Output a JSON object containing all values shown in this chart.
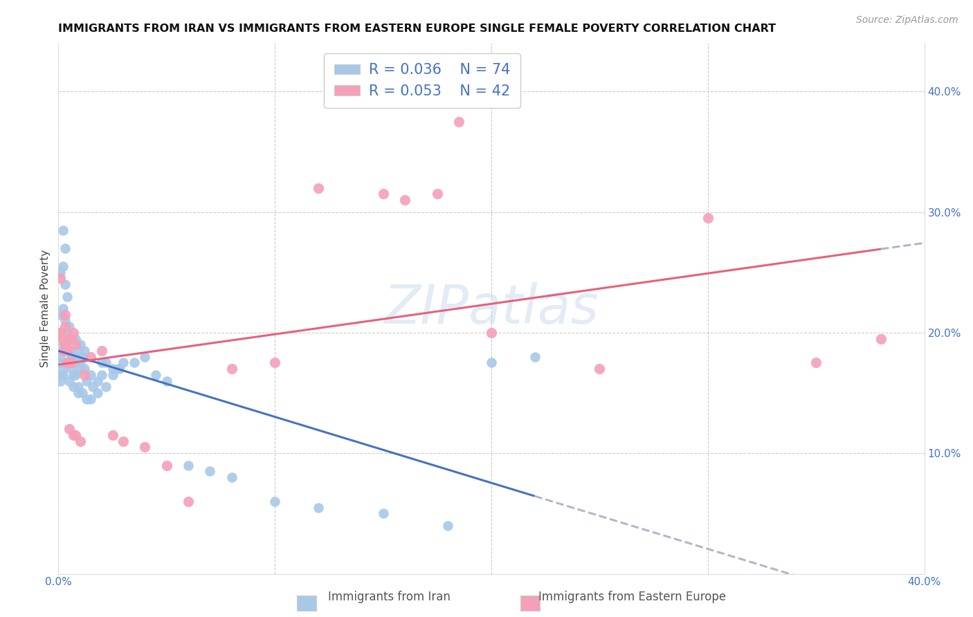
{
  "title": "IMMIGRANTS FROM IRAN VS IMMIGRANTS FROM EASTERN EUROPE SINGLE FEMALE POVERTY CORRELATION CHART",
  "source": "Source: ZipAtlas.com",
  "xlabel_iran": "Immigrants from Iran",
  "xlabel_ee": "Immigrants from Eastern Europe",
  "ylabel": "Single Female Poverty",
  "iran_R": 0.036,
  "iran_N": 74,
  "ee_R": 0.053,
  "ee_N": 42,
  "xlim": [
    0.0,
    0.4
  ],
  "ylim": [
    0.0,
    0.44
  ],
  "iran_color": "#a8c8e8",
  "ee_color": "#f4a0b8",
  "watermark": "ZIPatlas",
  "iran_x": [
    0.001,
    0.002,
    0.001,
    0.003,
    0.002,
    0.004,
    0.001,
    0.003,
    0.005,
    0.002,
    0.001,
    0.002,
    0.003,
    0.001,
    0.002,
    0.003,
    0.004,
    0.002,
    0.001,
    0.003,
    0.005,
    0.004,
    0.006,
    0.003,
    0.005,
    0.007,
    0.004,
    0.006,
    0.008,
    0.005,
    0.007,
    0.009,
    0.006,
    0.008,
    0.01,
    0.007,
    0.009,
    0.011,
    0.008,
    0.01,
    0.012,
    0.009,
    0.011,
    0.013,
    0.01,
    0.012,
    0.015,
    0.013,
    0.016,
    0.018,
    0.015,
    0.02,
    0.018,
    0.022,
    0.02,
    0.025,
    0.022,
    0.028,
    0.025,
    0.03,
    0.028,
    0.035,
    0.04,
    0.045,
    0.05,
    0.06,
    0.07,
    0.08,
    0.1,
    0.12,
    0.15,
    0.18,
    0.2,
    0.22
  ],
  "iran_y": [
    0.175,
    0.17,
    0.165,
    0.195,
    0.19,
    0.185,
    0.18,
    0.2,
    0.175,
    0.165,
    0.16,
    0.285,
    0.27,
    0.25,
    0.255,
    0.24,
    0.23,
    0.22,
    0.215,
    0.21,
    0.205,
    0.2,
    0.195,
    0.19,
    0.185,
    0.18,
    0.175,
    0.17,
    0.165,
    0.16,
    0.155,
    0.15,
    0.18,
    0.175,
    0.17,
    0.165,
    0.185,
    0.18,
    0.195,
    0.19,
    0.185,
    0.155,
    0.15,
    0.145,
    0.175,
    0.17,
    0.165,
    0.16,
    0.155,
    0.15,
    0.145,
    0.165,
    0.16,
    0.155,
    0.175,
    0.17,
    0.175,
    0.17,
    0.165,
    0.175,
    0.17,
    0.175,
    0.18,
    0.165,
    0.16,
    0.09,
    0.085,
    0.08,
    0.06,
    0.055,
    0.05,
    0.04,
    0.175,
    0.18
  ],
  "ee_x": [
    0.001,
    0.002,
    0.001,
    0.003,
    0.002,
    0.004,
    0.001,
    0.003,
    0.005,
    0.002,
    0.004,
    0.006,
    0.003,
    0.005,
    0.007,
    0.004,
    0.006,
    0.008,
    0.005,
    0.007,
    0.01,
    0.008,
    0.012,
    0.015,
    0.02,
    0.025,
    0.03,
    0.04,
    0.05,
    0.06,
    0.08,
    0.1,
    0.12,
    0.15,
    0.16,
    0.175,
    0.185,
    0.2,
    0.25,
    0.3,
    0.35,
    0.38
  ],
  "ee_y": [
    0.2,
    0.195,
    0.245,
    0.19,
    0.195,
    0.185,
    0.2,
    0.215,
    0.195,
    0.185,
    0.175,
    0.195,
    0.205,
    0.175,
    0.2,
    0.185,
    0.175,
    0.19,
    0.12,
    0.115,
    0.11,
    0.115,
    0.165,
    0.18,
    0.185,
    0.115,
    0.11,
    0.105,
    0.09,
    0.06,
    0.17,
    0.175,
    0.32,
    0.315,
    0.31,
    0.315,
    0.375,
    0.2,
    0.17,
    0.295,
    0.175,
    0.195
  ]
}
